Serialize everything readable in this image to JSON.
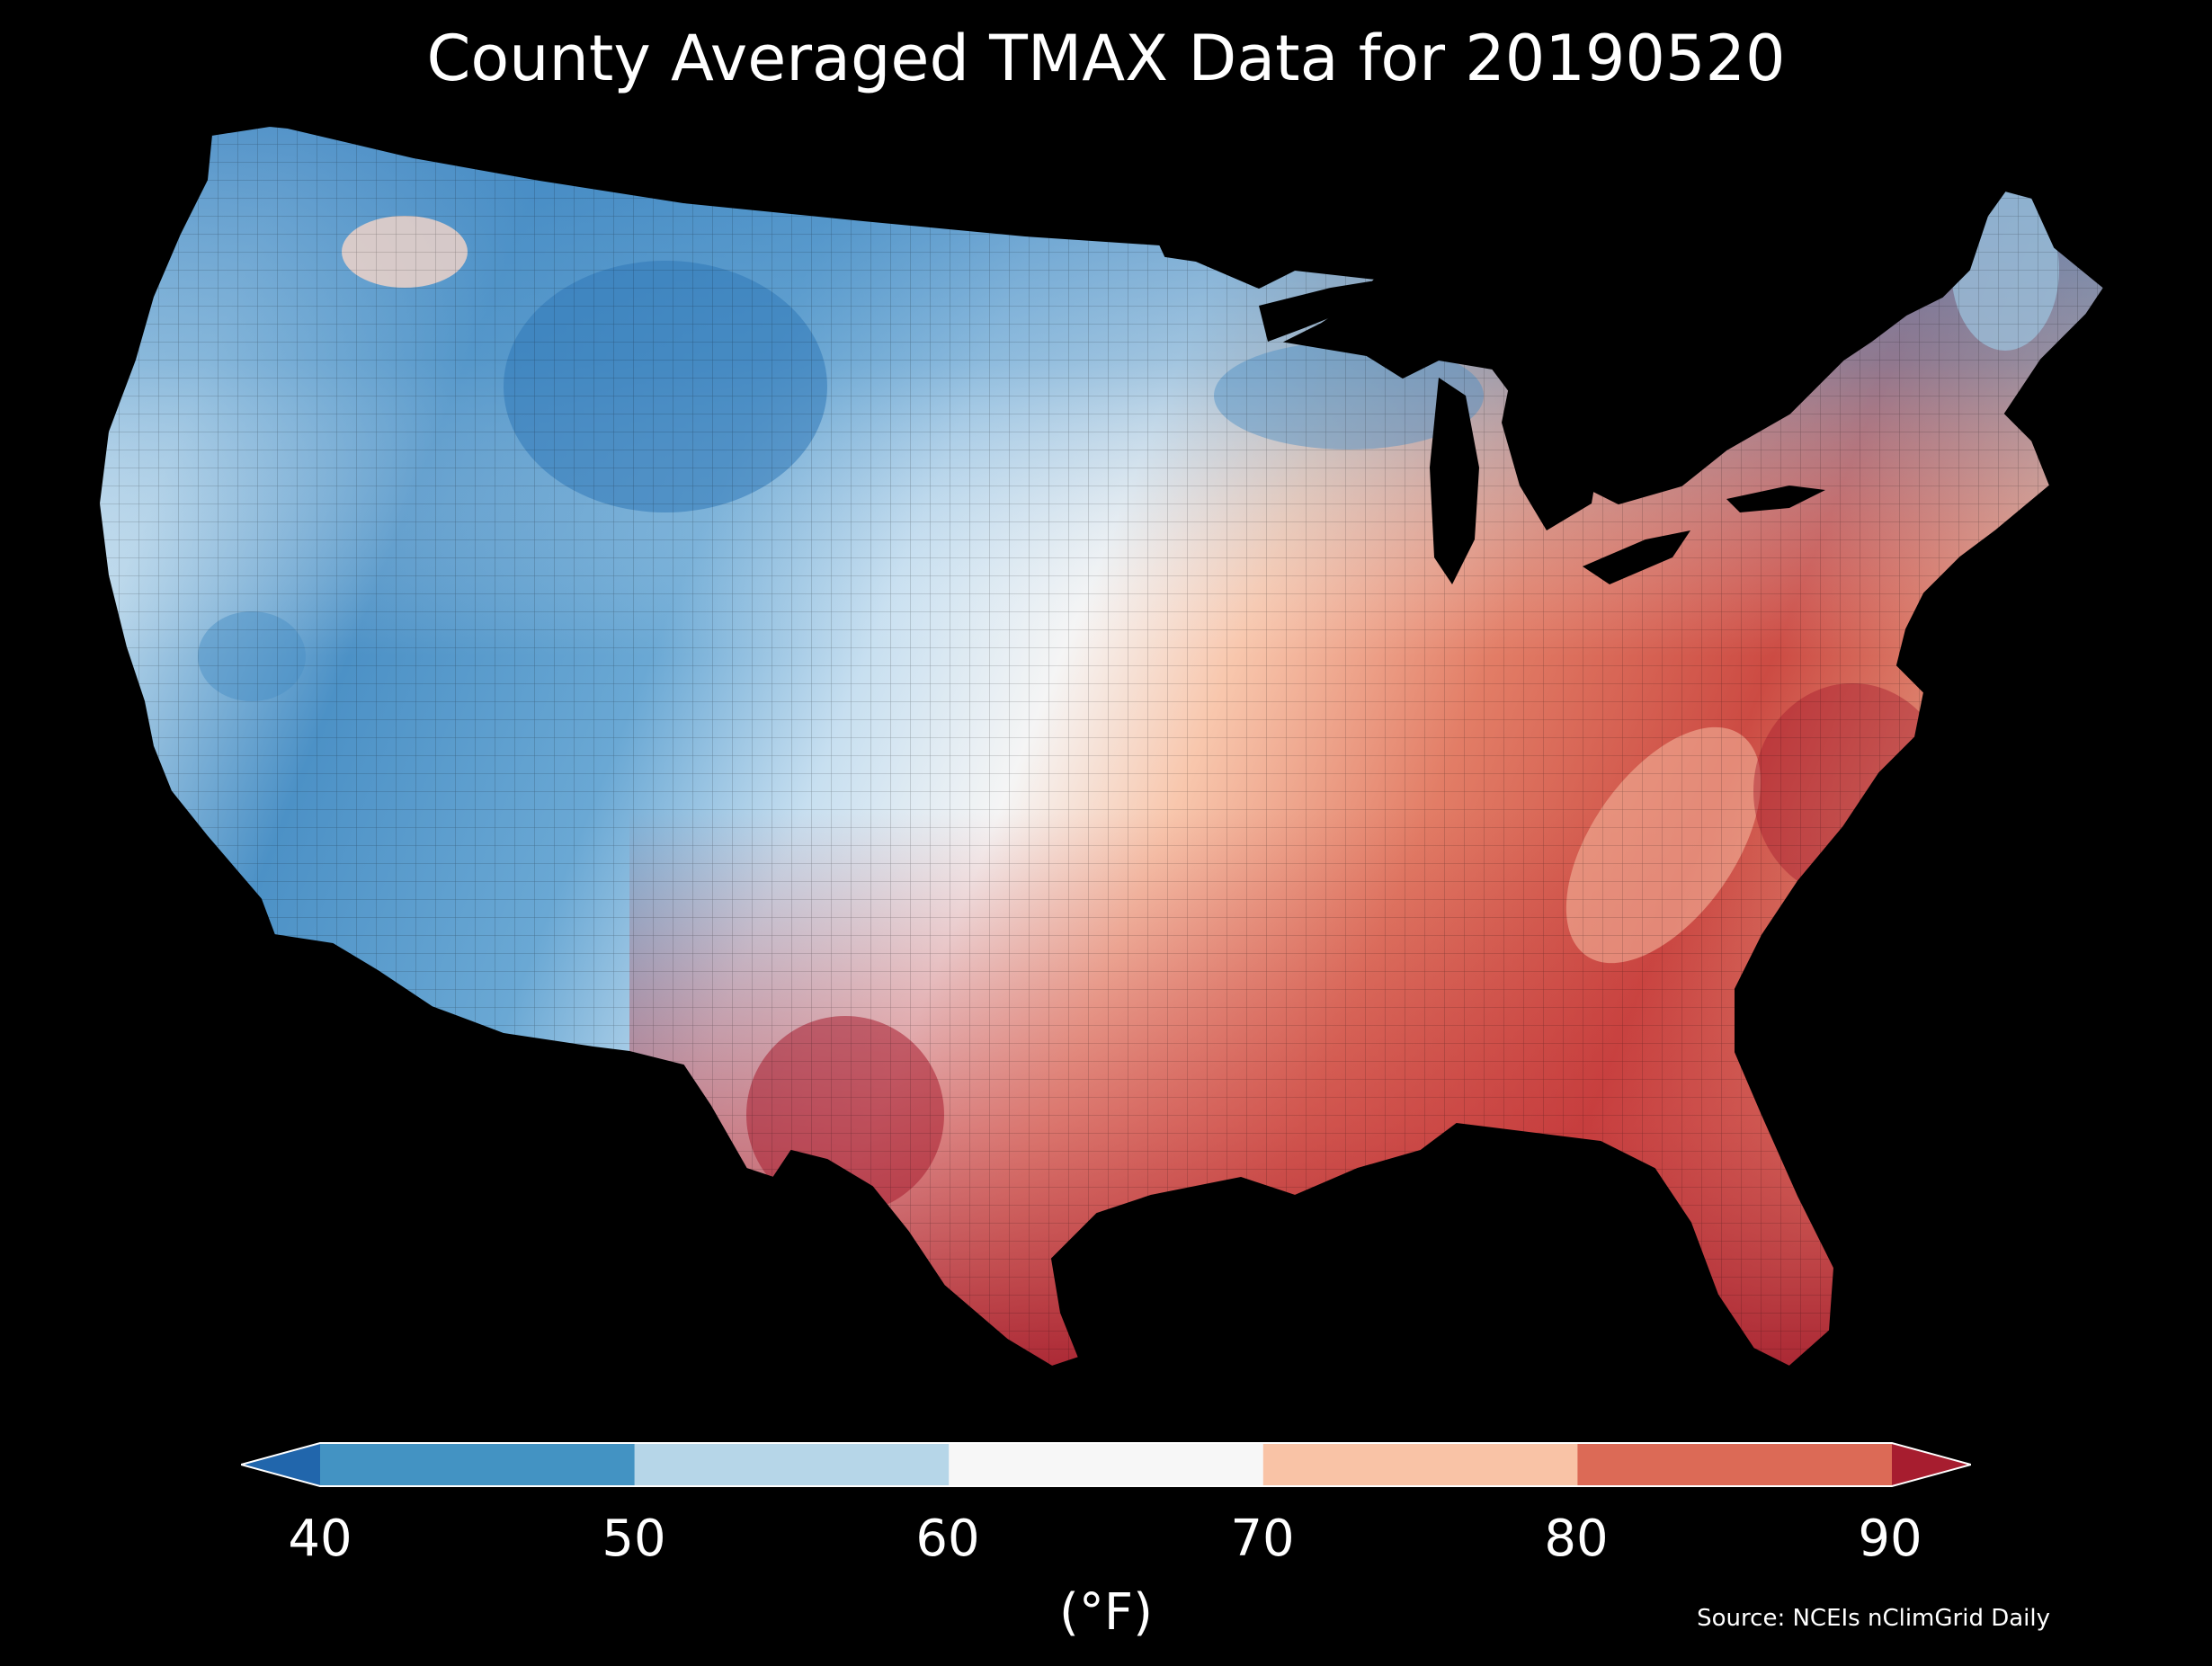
{
  "title": "County Averaged TMAX Data for 20190520",
  "colorbar": {
    "ticks": [
      "40",
      "50",
      "60",
      "70",
      "80",
      "90"
    ],
    "unit": "(°F)",
    "bins": [
      {
        "from": null,
        "to": 40,
        "color": "#2166ac"
      },
      {
        "from": 40,
        "to": 50,
        "color": "#4393c3"
      },
      {
        "from": 50,
        "to": 60,
        "color": "#b6d6e8"
      },
      {
        "from": 60,
        "to": 70,
        "color": "#f7f7f7"
      },
      {
        "from": 70,
        "to": 80,
        "color": "#f9c3a6"
      },
      {
        "from": 80,
        "to": 90,
        "color": "#dc6a56"
      },
      {
        "from": 90,
        "to": null,
        "color": "#a71d2f"
      }
    ],
    "extend": "both"
  },
  "source": "Source: NCEIs nClimGrid Daily",
  "map": {
    "region": "Contiguous United States",
    "variable": "TMAX",
    "date": "20190520",
    "colormap": "RdBu_r",
    "background": "#000000"
  }
}
